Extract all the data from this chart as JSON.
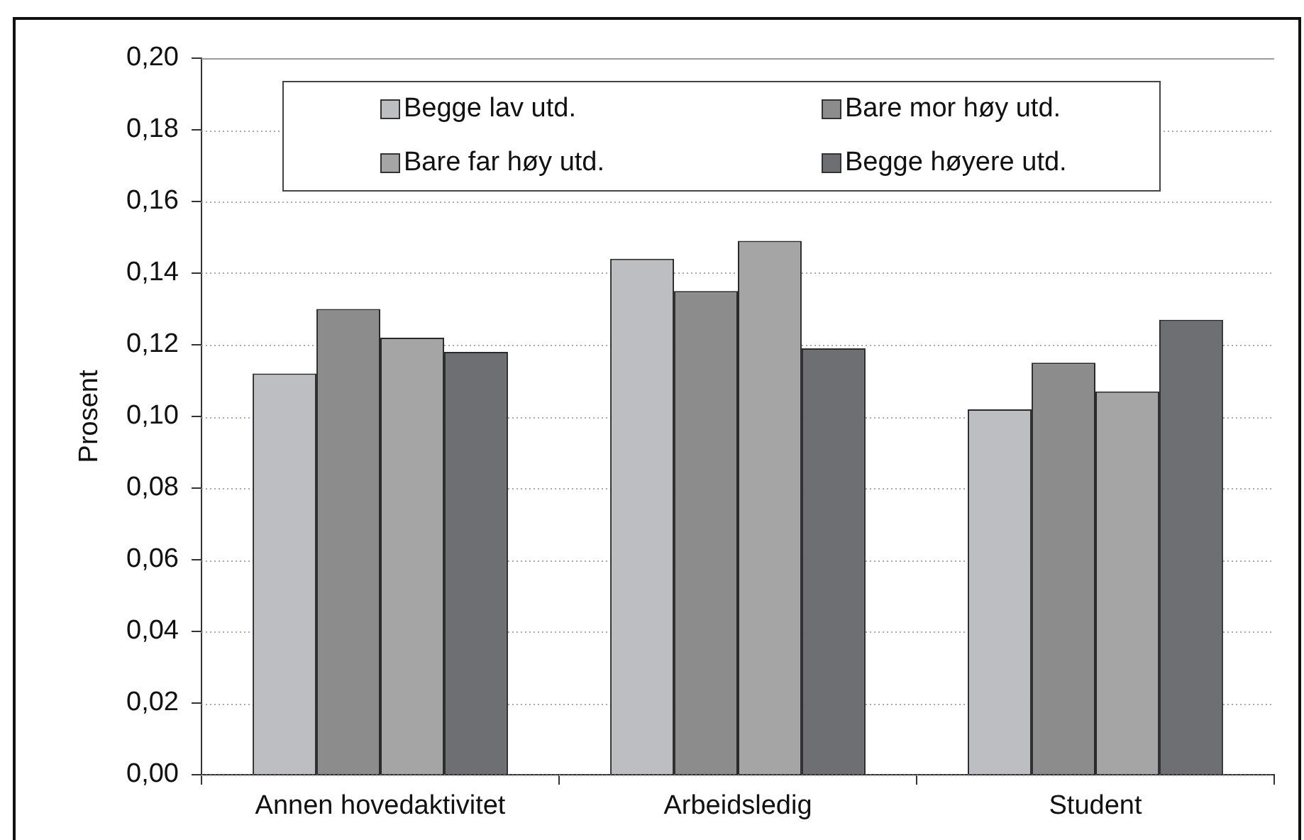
{
  "chart_data": {
    "type": "bar",
    "ylabel": "Prosent",
    "categories": [
      "Annen hovedaktivitet",
      "Arbeidsledig",
      "Student"
    ],
    "series": [
      {
        "name": "Begge lav utd.",
        "color": "#bdbec2",
        "values": [
          0.112,
          0.144,
          0.102
        ]
      },
      {
        "name": "Bare mor høy utd.",
        "color": "#8c8c8c",
        "values": [
          0.13,
          0.135,
          0.115
        ]
      },
      {
        "name": "Bare far høy utd.",
        "color": "#a5a5a5",
        "values": [
          0.122,
          0.149,
          0.107
        ]
      },
      {
        "name": "Begge høyere utd.",
        "color": "#6e6f73",
        "values": [
          0.118,
          0.119,
          0.127
        ]
      }
    ],
    "ylim": [
      0,
      0.2
    ],
    "yticks": [
      {
        "value": 0,
        "label": "0,00"
      },
      {
        "value": 0.02,
        "label": "0,02"
      },
      {
        "value": 0.04,
        "label": "0,04"
      },
      {
        "value": 0.06,
        "label": "0,06"
      },
      {
        "value": 0.08,
        "label": "0,08"
      },
      {
        "value": 0.1,
        "label": "0,10"
      },
      {
        "value": 0.12,
        "label": "0,12"
      },
      {
        "value": 0.14,
        "label": "0,14"
      },
      {
        "value": 0.16,
        "label": "0,16"
      },
      {
        "value": 0.18,
        "label": "0,18"
      },
      {
        "value": 0.2,
        "label": "0,20"
      }
    ],
    "grid": "y",
    "legend": "top"
  }
}
